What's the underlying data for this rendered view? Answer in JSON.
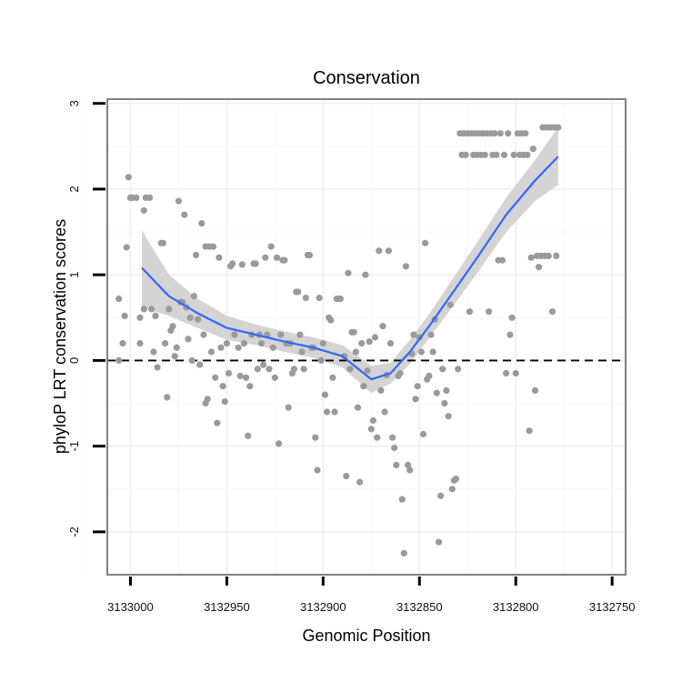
{
  "chart_data": {
    "type": "scatter",
    "title": "Conservation",
    "xlabel": "Genomic Position",
    "ylabel": "phyloP LRT conservation scores",
    "x_reversed": true,
    "xlim": [
      3133012,
      3132743
    ],
    "ylim": [
      -2.5,
      3.05
    ],
    "x_ticks": [
      3133000,
      3132950,
      3132900,
      3132850,
      3132800,
      3132750
    ],
    "x_tick_labels": [
      "3133000",
      "3132950",
      "3132900",
      "3132850",
      "3132800",
      "3132750"
    ],
    "y_ticks": [
      -2,
      -1,
      0,
      1,
      2,
      3
    ],
    "y_tick_labels": [
      "-2",
      "-1",
      "0",
      "1",
      "2",
      "3"
    ],
    "reference_line_y": 0,
    "point_color": "#9a9a9a",
    "line_color": "#3366ff",
    "band_color": "#d2d2d2",
    "grid": true,
    "series": [
      {
        "name": "phyloP LRT score",
        "points": [
          [
            3133006,
            0
          ],
          [
            3133006,
            0.72
          ],
          [
            3133004,
            0.2
          ],
          [
            3133003,
            0.52
          ],
          [
            3133002,
            1.32
          ],
          [
            3133001,
            2.14
          ],
          [
            3133000,
            1.9
          ],
          [
            3132999,
            1.9
          ],
          [
            3132997,
            1.9
          ],
          [
            3132995,
            0.2
          ],
          [
            3132995,
            0.5
          ],
          [
            3132993,
            1.75
          ],
          [
            3132993,
            0.6
          ],
          [
            3132992,
            1.9
          ],
          [
            3132990,
            1.9
          ],
          [
            3132989,
            0.6
          ],
          [
            3132988,
            0.1
          ],
          [
            3132987,
            0.52
          ],
          [
            3132986,
            -0.08
          ],
          [
            3132984,
            1.37
          ],
          [
            3132983,
            1.37
          ],
          [
            3132982,
            0.2
          ],
          [
            3132981,
            -0.43
          ],
          [
            3132980,
            0.6
          ],
          [
            3132979,
            0.35
          ],
          [
            3132978,
            0.4
          ],
          [
            3132977,
            0.05
          ],
          [
            3132976,
            0.15
          ],
          [
            3132975,
            1.86
          ],
          [
            3132974,
            0.68
          ],
          [
            3132973,
            0.68
          ],
          [
            3132972,
            1.7
          ],
          [
            3132971,
            0.62
          ],
          [
            3132970,
            0.25
          ],
          [
            3132969,
            0.5
          ],
          [
            3132968,
            0.0
          ],
          [
            3132967,
            0.75
          ],
          [
            3132966,
            1.23
          ],
          [
            3132965,
            0.48
          ],
          [
            3132964,
            -0.05
          ],
          [
            3132963,
            1.6
          ],
          [
            3132962,
            0.3
          ],
          [
            3132961,
            -0.5
          ],
          [
            3132961,
            1.33
          ],
          [
            3132960,
            -0.45
          ],
          [
            3132959,
            1.33
          ],
          [
            3132958,
            0.1
          ],
          [
            3132957,
            1.33
          ],
          [
            3132956,
            -0.2
          ],
          [
            3132955,
            -0.73
          ],
          [
            3132954,
            1.2
          ],
          [
            3132953,
            0.15
          ],
          [
            3132952,
            -0.3
          ],
          [
            3132951,
            -0.48
          ],
          [
            3132950,
            0.2
          ],
          [
            3132949,
            -0.15
          ],
          [
            3132948,
            1.1
          ],
          [
            3132947,
            1.13
          ],
          [
            3132946,
            0.3
          ],
          [
            3132944,
            0.15
          ],
          [
            3132943,
            -0.18
          ],
          [
            3132942,
            1.12
          ],
          [
            3132941,
            0.2
          ],
          [
            3132940,
            -0.2
          ],
          [
            3132939,
            -0.88
          ],
          [
            3132938,
            -0.3
          ],
          [
            3132937,
            0.3
          ],
          [
            3132936,
            1.13
          ],
          [
            3132935,
            1.13
          ],
          [
            3132934,
            -0.1
          ],
          [
            3132933,
            0.3
          ],
          [
            3132932,
            0.2
          ],
          [
            3132931,
            -0.05
          ],
          [
            3132930,
            1.2
          ],
          [
            3132929,
            0.3
          ],
          [
            3132928,
            -0.1
          ],
          [
            3132927,
            1.33
          ],
          [
            3132926,
            0.15
          ],
          [
            3132925,
            -0.2
          ],
          [
            3132924,
            1.2
          ],
          [
            3132923,
            -0.97
          ],
          [
            3132922,
            0.3
          ],
          [
            3132921,
            1.17
          ],
          [
            3132920,
            1.17
          ],
          [
            3132919,
            0.2
          ],
          [
            3132918,
            -0.55
          ],
          [
            3132917,
            0.2
          ],
          [
            3132916,
            -0.15
          ],
          [
            3132915,
            -0.1
          ],
          [
            3132914,
            0.8
          ],
          [
            3132913,
            0.8
          ],
          [
            3132912,
            0.3
          ],
          [
            3132911,
            0.1
          ],
          [
            3132910,
            -0.1
          ],
          [
            3132909,
            0.73
          ],
          [
            3132908,
            1.23
          ],
          [
            3132907,
            1.23
          ],
          [
            3132906,
            0.15
          ],
          [
            3132905,
            0.15
          ],
          [
            3132904,
            -0.9
          ],
          [
            3132903,
            -1.28
          ],
          [
            3132902,
            0.73
          ],
          [
            3132901,
            0.0
          ],
          [
            3132900,
            0.2
          ],
          [
            3132899,
            -0.4
          ],
          [
            3132898,
            -0.6
          ],
          [
            3132897,
            0.5
          ],
          [
            3132896,
            0.47
          ],
          [
            3132895,
            -0.2
          ],
          [
            3132894,
            -0.6
          ],
          [
            3132893,
            0.72
          ],
          [
            3132892,
            0.72
          ],
          [
            3132891,
            0.72
          ],
          [
            3132889,
            0.05
          ],
          [
            3132888,
            -1.35
          ],
          [
            3132887,
            1.02
          ],
          [
            3132886,
            -0.1
          ],
          [
            3132885,
            0.33
          ],
          [
            3132884,
            0.33
          ],
          [
            3132883,
            0.1
          ],
          [
            3132882,
            -0.55
          ],
          [
            3132881,
            -1.42
          ],
          [
            3132880,
            0.2
          ],
          [
            3132879,
            -0.3
          ],
          [
            3132878,
            1.0
          ],
          [
            3132877,
            -0.12
          ],
          [
            3132876,
            0.22
          ],
          [
            3132875,
            -0.8
          ],
          [
            3132874,
            -0.7
          ],
          [
            3132873,
            0.27
          ],
          [
            3132872,
            -0.9
          ],
          [
            3132871,
            1.28
          ],
          [
            3132870,
            -0.35
          ],
          [
            3132869,
            0.4
          ],
          [
            3132868,
            -0.6
          ],
          [
            3132867,
            -0.17
          ],
          [
            3132866,
            1.28
          ],
          [
            3132865,
            0.2
          ],
          [
            3132864,
            -0.9
          ],
          [
            3132863,
            -1.02
          ],
          [
            3132862,
            -1.22
          ],
          [
            3132861,
            -0.18
          ],
          [
            3132860,
            -0.15
          ],
          [
            3132859,
            -1.62
          ],
          [
            3132858,
            -2.25
          ],
          [
            3132857,
            1.1
          ],
          [
            3132856,
            -1.22
          ],
          [
            3132855,
            -1.28
          ],
          [
            3132854,
            0.08
          ],
          [
            3132853,
            0.3
          ],
          [
            3132852,
            -0.45
          ],
          [
            3132851,
            -0.3
          ],
          [
            3132850,
            0.27
          ],
          [
            3132849,
            0.1
          ],
          [
            3132848,
            -0.86
          ],
          [
            3132847,
            1.37
          ],
          [
            3132846,
            -0.22
          ],
          [
            3132845,
            -0.18
          ],
          [
            3132844,
            0.3
          ],
          [
            3132843,
            0.1
          ],
          [
            3132842,
            0.48
          ],
          [
            3132841,
            -0.38
          ],
          [
            3132840,
            -2.12
          ],
          [
            3132839,
            -1.58
          ],
          [
            3132838,
            -0.1
          ],
          [
            3132837,
            -0.5
          ],
          [
            3132836,
            -0.35
          ],
          [
            3132835,
            -0.65
          ],
          [
            3132834,
            0.65
          ],
          [
            3132833,
            -1.5
          ],
          [
            3132832,
            -1.4
          ],
          [
            3132831,
            -1.38
          ],
          [
            3132830,
            -0.1
          ],
          [
            3132829,
            2.65
          ],
          [
            3132828,
            2.4
          ],
          [
            3132827,
            2.65
          ],
          [
            3132826,
            2.4
          ],
          [
            3132825,
            2.65
          ],
          [
            3132824,
            0.57
          ],
          [
            3132823,
            2.65
          ],
          [
            3132822,
            2.4
          ],
          [
            3132821,
            2.65
          ],
          [
            3132820,
            2.4
          ],
          [
            3132819,
            2.65
          ],
          [
            3132818,
            2.4
          ],
          [
            3132817,
            2.65
          ],
          [
            3132816,
            2.4
          ],
          [
            3132815,
            2.65
          ],
          [
            3132814,
            0.57
          ],
          [
            3132813,
            2.65
          ],
          [
            3132812,
            2.4
          ],
          [
            3132811,
            2.65
          ],
          [
            3132810,
            2.4
          ],
          [
            3132809,
            1.17
          ],
          [
            3132808,
            2.65
          ],
          [
            3132807,
            1.17
          ],
          [
            3132806,
            2.4
          ],
          [
            3132805,
            -0.15
          ],
          [
            3132804,
            2.65
          ],
          [
            3132803,
            0.3
          ],
          [
            3132802,
            0.5
          ],
          [
            3132801,
            2.4
          ],
          [
            3132800,
            -0.15
          ],
          [
            3132799,
            2.65
          ],
          [
            3132798,
            2.4
          ],
          [
            3132797,
            2.65
          ],
          [
            3132796,
            2.4
          ],
          [
            3132795,
            2.65
          ],
          [
            3132794,
            2.4
          ],
          [
            3132793,
            -0.82
          ],
          [
            3132792,
            1.2
          ],
          [
            3132791,
            2.47
          ],
          [
            3132790,
            -0.35
          ],
          [
            3132789,
            1.22
          ],
          [
            3132788,
            1.09
          ],
          [
            3132787,
            1.22
          ],
          [
            3132786,
            2.72
          ],
          [
            3132785,
            1.22
          ],
          [
            3132784,
            2.72
          ],
          [
            3132783,
            1.22
          ],
          [
            3132782,
            2.72
          ],
          [
            3132781,
            0.57
          ],
          [
            3132780,
            2.72
          ],
          [
            3132779,
            1.22
          ],
          [
            3132778,
            2.72
          ]
        ]
      }
    ],
    "smooth_fit": {
      "method": "loess",
      "x": [
        3132994,
        3132980,
        3132965,
        3132950,
        3132935,
        3132920,
        3132905,
        3132890,
        3132875,
        3132865,
        3132855,
        3132845,
        3132835,
        3132820,
        3132805,
        3132790,
        3132778
      ],
      "y": [
        1.08,
        0.75,
        0.55,
        0.38,
        0.3,
        0.22,
        0.15,
        0.05,
        -0.22,
        -0.15,
        0.1,
        0.4,
        0.72,
        1.2,
        1.7,
        2.1,
        2.38
      ],
      "lower": [
        0.62,
        0.52,
        0.38,
        0.24,
        0.18,
        0.1,
        0.03,
        -0.08,
        -0.38,
        -0.27,
        -0.04,
        0.26,
        0.56,
        1.02,
        1.5,
        1.86,
        2.05
      ],
      "upper": [
        1.52,
        1.0,
        0.72,
        0.52,
        0.42,
        0.34,
        0.27,
        0.18,
        -0.06,
        -0.03,
        0.24,
        0.54,
        0.88,
        1.38,
        1.9,
        2.34,
        2.72
      ]
    }
  }
}
